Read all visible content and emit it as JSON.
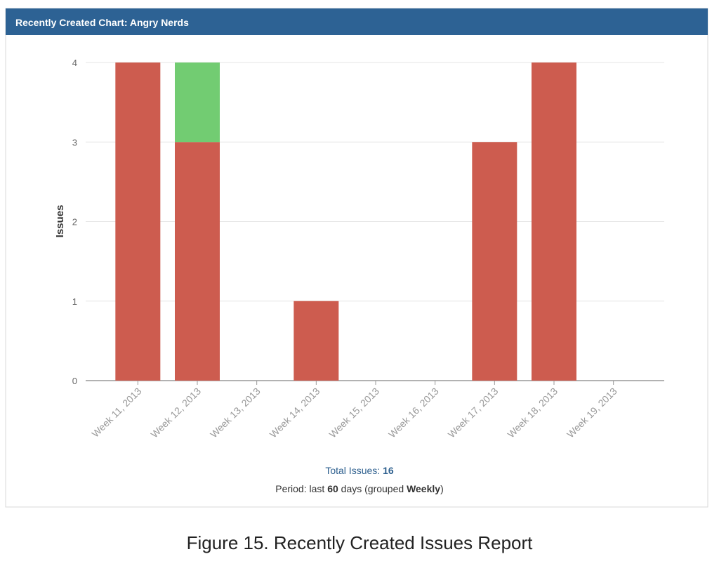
{
  "panel_title": "Recently Created Chart: Angry Nerds",
  "chart_data": {
    "type": "bar",
    "stacked": true,
    "y_label": "Issues",
    "categories": [
      "Week 11, 2013",
      "Week 12, 2013",
      "Week 13, 2013",
      "Week 14, 2013",
      "Week 15, 2013",
      "Week 16, 2013",
      "Week 17, 2013",
      "Week 18, 2013",
      "Week 19, 2013"
    ],
    "series": [
      {
        "color": "#cd5c4f",
        "values": [
          4,
          3,
          0,
          1,
          0,
          0,
          3,
          4,
          0
        ]
      },
      {
        "color": "#72cc72",
        "values": [
          0,
          1,
          0,
          0,
          0,
          0,
          0,
          0,
          0
        ]
      }
    ],
    "ylim": [
      0,
      4
    ],
    "yticks": [
      0,
      1,
      2,
      3,
      4
    ],
    "grid": true
  },
  "footer": {
    "total_label": "Total Issues:",
    "total": 16,
    "period_prefix": "Period: last",
    "period_days": 60,
    "period_middle": "days (grouped",
    "period_group": "Weekly",
    "period_suffix": ")"
  },
  "caption": "Figure 15. Recently Created Issues Report"
}
